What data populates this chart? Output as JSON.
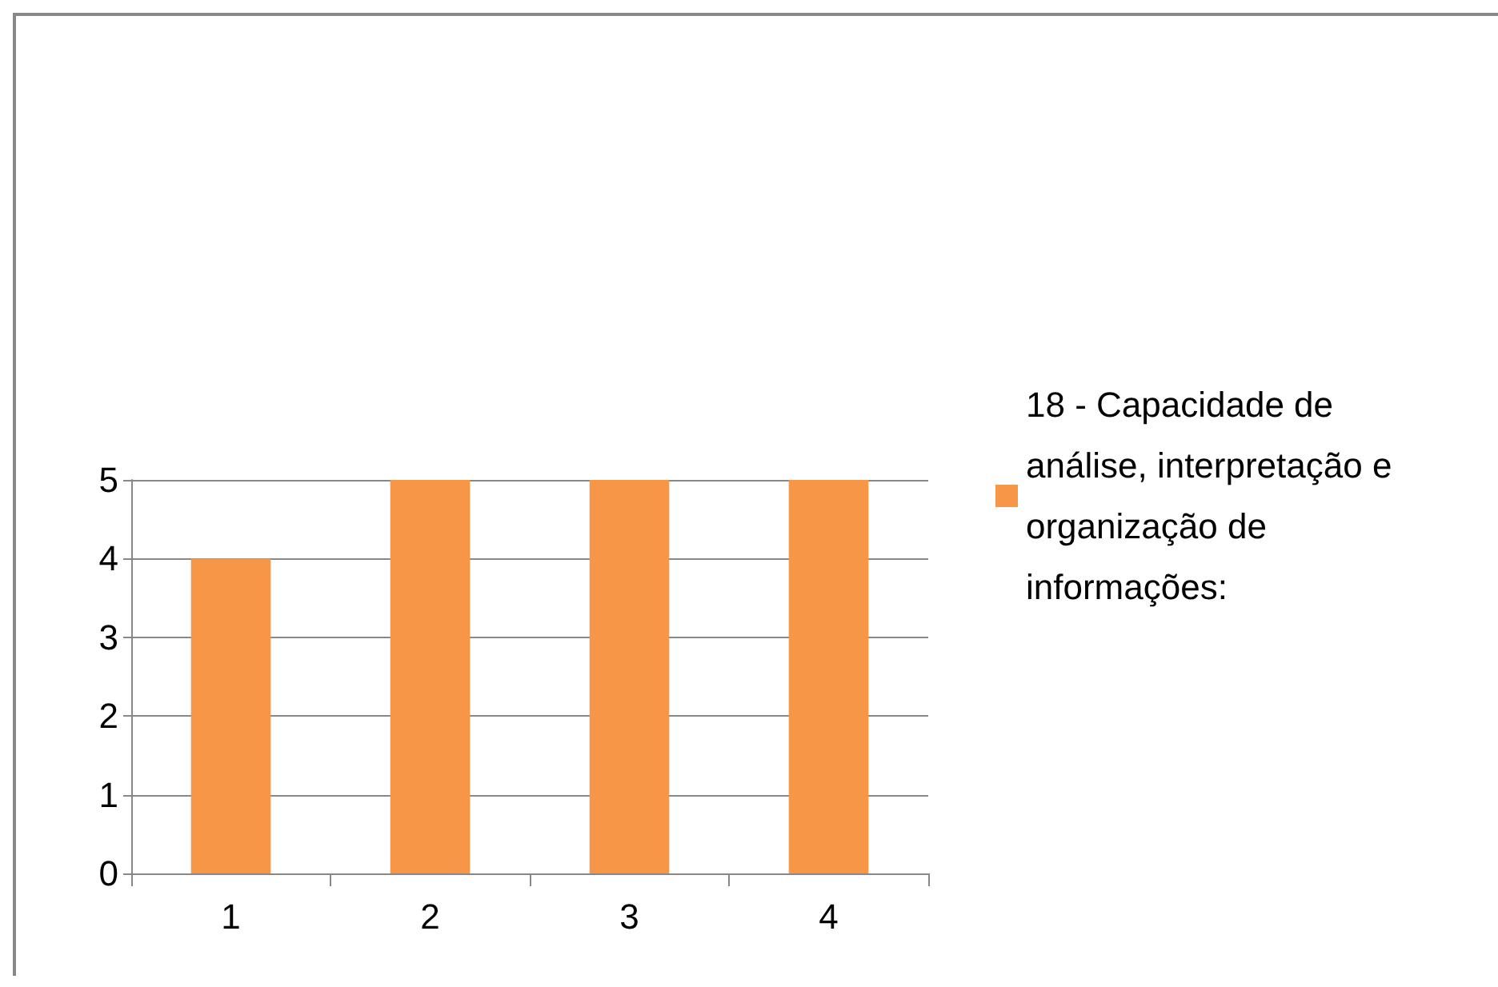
{
  "chart_data": {
    "type": "bar",
    "categories": [
      "1",
      "2",
      "3",
      "4"
    ],
    "series": [
      {
        "name": "18 - Capacidade de análise, interpretação e organização de informações:",
        "color": "#f79646",
        "values": [
          4,
          5,
          5,
          5
        ]
      }
    ],
    "ylim": [
      0,
      5
    ],
    "yticks": [
      0,
      1,
      2,
      3,
      4,
      5
    ],
    "grid": "y",
    "legend": "right"
  }
}
